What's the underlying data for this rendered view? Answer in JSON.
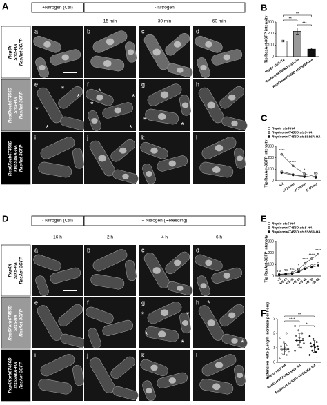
{
  "figure": {
    "asterisk": "*",
    "A": {
      "label": "A",
      "header_ctrl": "+Nitrogen (Ctrl)",
      "header_treat": "- Nitrogen",
      "times": [
        "15 min",
        "30 min",
        "60 min"
      ],
      "rows": [
        [
          "Rep6X",
          "Sts5-HA",
          "RasAct-3GFP"
        ],
        [
          "Rep6Xorb6T456D",
          "Sts5-HA",
          "RasAct-3GFP"
        ],
        [
          "Rep6Xorb6T456D",
          "sts5S86A-HA",
          "RasAct-3GFP"
        ]
      ],
      "cells": [
        "a",
        "b",
        "c",
        "d",
        "e",
        "f",
        "g",
        "h",
        "i",
        "j",
        "k",
        "l"
      ]
    },
    "D": {
      "label": "D",
      "header_ctrl": "- Nitrogen (Ctrl)",
      "header_treat": "+ Nitrogen (Refeeding)",
      "times": [
        "16 h",
        "2 h",
        "4 h",
        "6 h"
      ],
      "rows": [
        [
          "Rep6X",
          "Sts5-HA",
          "RasAct-3GFP"
        ],
        [
          "Rep6Xorb6T456D",
          "Sts5-HA",
          "RasAct-3GFP"
        ],
        [
          "Rep6Xorb6T456D",
          "sts5S86A-HA",
          "RasAct-3GFP"
        ]
      ],
      "cells": [
        "a",
        "b",
        "c",
        "d",
        "e",
        "f",
        "g",
        "h",
        "i",
        "j",
        "k",
        "l"
      ]
    }
  },
  "chart_data": [
    {
      "label": "B",
      "type": "bar",
      "ylabel": "Tip RasAct-3GFP intensity",
      "categories": [
        "Rep6x sts5-HA",
        "Rep6xorb6T456D sts5-HA",
        "Rep6xorb6T456D sts5S86A-HA"
      ],
      "values": [
        135,
        220,
        65
      ],
      "errors": [
        8,
        30,
        8
      ],
      "colors": [
        "#ffffff",
        "#999999",
        "#111111"
      ],
      "ylim": [
        0,
        300
      ],
      "yticks": [
        0,
        100,
        200,
        300
      ],
      "significance": [
        "**",
        "**",
        "***"
      ]
    },
    {
      "label": "C",
      "type": "line",
      "ylabel": "Tip RasAct-3GFP intensity",
      "categories": [
        "+N",
        "-N 15min",
        "-N 30min",
        "-N 60min"
      ],
      "series": [
        {
          "name": "Rep6x sts5-HA",
          "color": "#ffffff",
          "values": [
            80,
            55,
            40,
            30
          ]
        },
        {
          "name": "Rep6xorb6T456D sts5-HA",
          "color": "#999999",
          "values": [
            230,
            130,
            60,
            35
          ]
        },
        {
          "name": "Rep6xorb6T456D sts5S86A-HA",
          "color": "#111111",
          "values": [
            70,
            50,
            35,
            30
          ]
        }
      ],
      "ylim": [
        0,
        300
      ],
      "yticks": [
        0,
        100,
        200,
        300
      ],
      "annotations": [
        "****",
        "****",
        "*",
        "ns"
      ]
    },
    {
      "label": "E",
      "type": "line",
      "ylabel": "Tip RasAct-3GFP intensity",
      "categories": [
        "-N",
        "+N 1h",
        "+N 2h",
        "+N 3h",
        "+N 4h",
        "+N 5h",
        "+N 6h"
      ],
      "series": [
        {
          "name": "Rep6x sts5-HA",
          "color": "#ffffff",
          "values": [
            12,
            15,
            22,
            40,
            70,
            90,
            110
          ]
        },
        {
          "name": "Rep6xorb6T456D sts5-HA",
          "color": "#999999",
          "values": [
            15,
            20,
            30,
            60,
            110,
            150,
            190
          ]
        },
        {
          "name": "Rep6xorb6T456D sts5S86A-HA",
          "color": "#111111",
          "values": [
            10,
            15,
            20,
            35,
            60,
            75,
            90
          ]
        }
      ],
      "ylim": [
        0,
        300
      ],
      "yticks": [
        0,
        100,
        200,
        300
      ],
      "annotations": [
        "ns",
        "ns",
        "ns",
        "*",
        "****",
        "****",
        "****"
      ]
    },
    {
      "label": "F",
      "type": "strip",
      "ylabel": "Extension Rate (Length increase per hour)",
      "categories": [
        "Rep6x sts5-HA",
        "Rep6xorb6T456D sts5-HA",
        "Rep6xorb6T456D sts5S86A-HA"
      ],
      "colors": [
        "#ffffff",
        "#999999",
        "#111111"
      ],
      "points": [
        [
          0.3,
          0.5,
          0.6,
          0.7,
          0.8,
          0.85,
          0.9,
          1.0,
          1.1,
          1.2,
          1.4,
          1.7,
          2.0
        ],
        [
          0.8,
          1.0,
          1.2,
          1.3,
          1.4,
          1.5,
          1.6,
          1.7,
          1.8,
          2.0,
          2.2,
          2.5
        ],
        [
          0.5,
          0.7,
          0.8,
          0.9,
          1.0,
          1.1,
          1.1,
          1.2,
          1.3,
          1.4,
          1.6,
          1.8
        ]
      ],
      "means": [
        0.9,
        1.5,
        1.1
      ],
      "sds": [
        0.4,
        0.5,
        0.4
      ],
      "ylim": [
        0,
        3
      ],
      "yticks": [
        0,
        1,
        2,
        3
      ],
      "significance": [
        "**",
        "****",
        "*"
      ]
    }
  ]
}
